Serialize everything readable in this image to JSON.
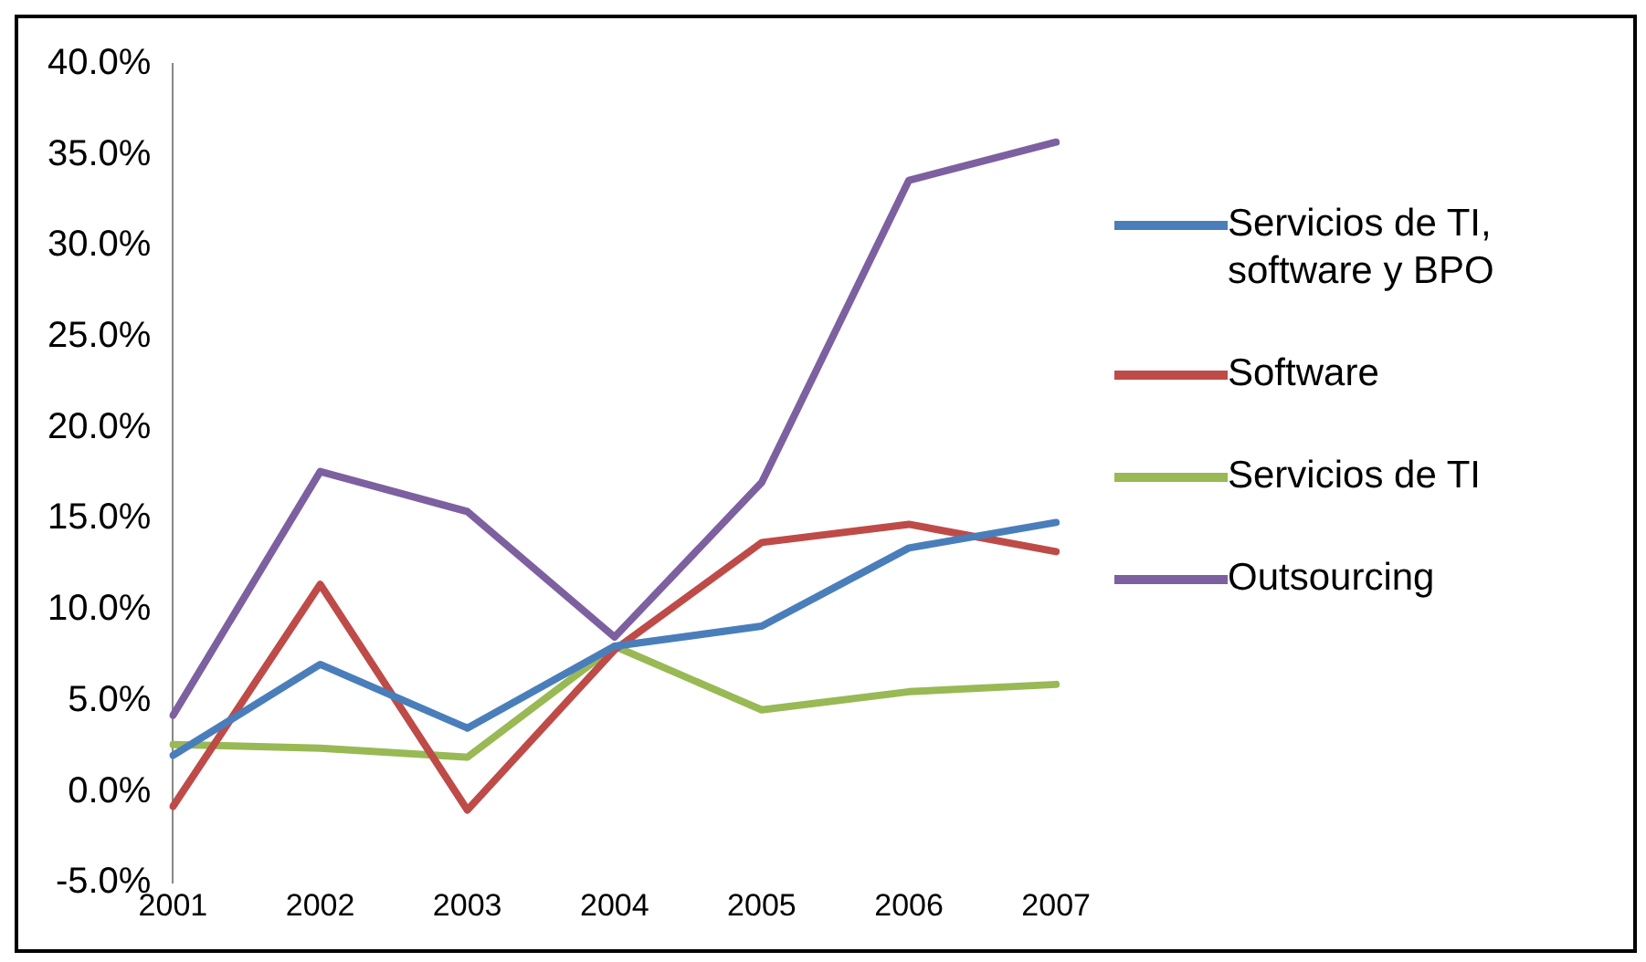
{
  "chart_data": {
    "type": "line",
    "categories": [
      "2001",
      "2002",
      "2003",
      "2004",
      "2005",
      "2006",
      "2007"
    ],
    "series": [
      {
        "name": "Servicios de TI, software y BPO",
        "color": "#4a7ebb",
        "values": [
          2.0,
          7.0,
          3.5,
          8.0,
          9.1,
          13.4,
          14.8
        ]
      },
      {
        "name": "Software",
        "color": "#be4b48",
        "values": [
          -0.8,
          11.4,
          -1.0,
          7.8,
          13.7,
          14.7,
          13.2
        ]
      },
      {
        "name": "Servicios de TI",
        "color": "#98b954",
        "values": [
          2.6,
          2.4,
          1.9,
          8.0,
          4.5,
          5.5,
          5.9
        ]
      },
      {
        "name": "Outsourcing",
        "color": "#7d60a0",
        "values": [
          4.2,
          17.6,
          15.4,
          8.5,
          17.0,
          33.6,
          35.7
        ]
      }
    ],
    "ylim": [
      -5,
      40
    ],
    "yticks": [
      {
        "value": -5,
        "label": "-5.0%"
      },
      {
        "value": 0,
        "label": "0.0%"
      },
      {
        "value": 5,
        "label": "5.0%"
      },
      {
        "value": 10,
        "label": "10.0%"
      },
      {
        "value": 15,
        "label": "15.0%"
      },
      {
        "value": 20,
        "label": "20.0%"
      },
      {
        "value": 25,
        "label": "25.0%"
      },
      {
        "value": 30,
        "label": "30.0%"
      },
      {
        "value": 35,
        "label": "35.0%"
      },
      {
        "value": 40,
        "label": "40.0%"
      }
    ],
    "grid": false,
    "legend": "right",
    "marker": "none",
    "line_style": "solid"
  }
}
